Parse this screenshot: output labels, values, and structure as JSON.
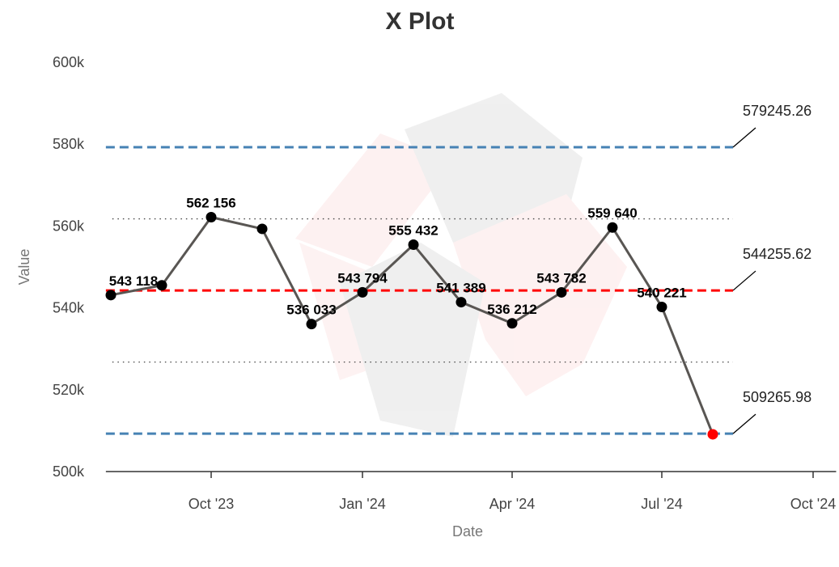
{
  "chart_data": {
    "type": "line",
    "title": "X Plot",
    "xlabel": "Date",
    "ylabel": "Value",
    "ylim": [
      500000,
      600000
    ],
    "xlim": [
      "2023-07-28",
      "2024-10-15"
    ],
    "y_ticks": [
      500000,
      520000,
      540000,
      560000,
      580000,
      600000
    ],
    "y_tick_labels": [
      "500k",
      "520k",
      "540k",
      "560k",
      "580k",
      "600k"
    ],
    "x_ticks": [
      "2023-10-01",
      "2024-01-01",
      "2024-04-01",
      "2024-07-01",
      "2024-10-01"
    ],
    "x_tick_labels": [
      "Oct '23",
      "Jan '24",
      "Apr '24",
      "Jul '24",
      "Oct '24"
    ],
    "grid": false,
    "series": [
      {
        "x": [
          "2023-08-01",
          "2023-09-01",
          "2023-10-01",
          "2023-11-01",
          "2023-12-01",
          "2024-01-01",
          "2024-02-01",
          "2024-03-01",
          "2024-04-01",
          "2024-05-01",
          "2024-06-01",
          "2024-07-01",
          "2024-08-01"
        ],
        "values": [
          543118,
          545500,
          562156,
          559300,
          536033,
          543794,
          555432,
          541389,
          536212,
          543782,
          559640,
          540221,
          509100
        ],
        "point_labels": [
          "543 118",
          "",
          "562 156",
          "",
          "536 033",
          "543 794",
          "555 432",
          "541 389",
          "536 212",
          "543 782",
          "559 640",
          "540 221",
          ""
        ],
        "out_of_control": [
          false,
          false,
          false,
          false,
          false,
          false,
          false,
          false,
          false,
          false,
          false,
          false,
          true
        ],
        "line_color": "#595653",
        "point_color": "#000000",
        "out_of_control_color": "#ff0000"
      }
    ],
    "reference_lines": [
      {
        "role": "ucl",
        "value": 579245.26,
        "label": "579245.26",
        "color": "#4682b4",
        "style": "dashed"
      },
      {
        "role": "center",
        "value": 544255.62,
        "label": "544255.62",
        "color": "#ff0000",
        "style": "dashed"
      },
      {
        "role": "lcl",
        "value": 509265.98,
        "label": "509265.98",
        "color": "#4682b4",
        "style": "dashed"
      },
      {
        "role": "upper-sigma",
        "value": 561750,
        "label": "",
        "color": "#444444",
        "style": "dotted"
      },
      {
        "role": "lower-sigma",
        "value": 526760,
        "label": "",
        "color": "#444444",
        "style": "dotted"
      }
    ]
  }
}
